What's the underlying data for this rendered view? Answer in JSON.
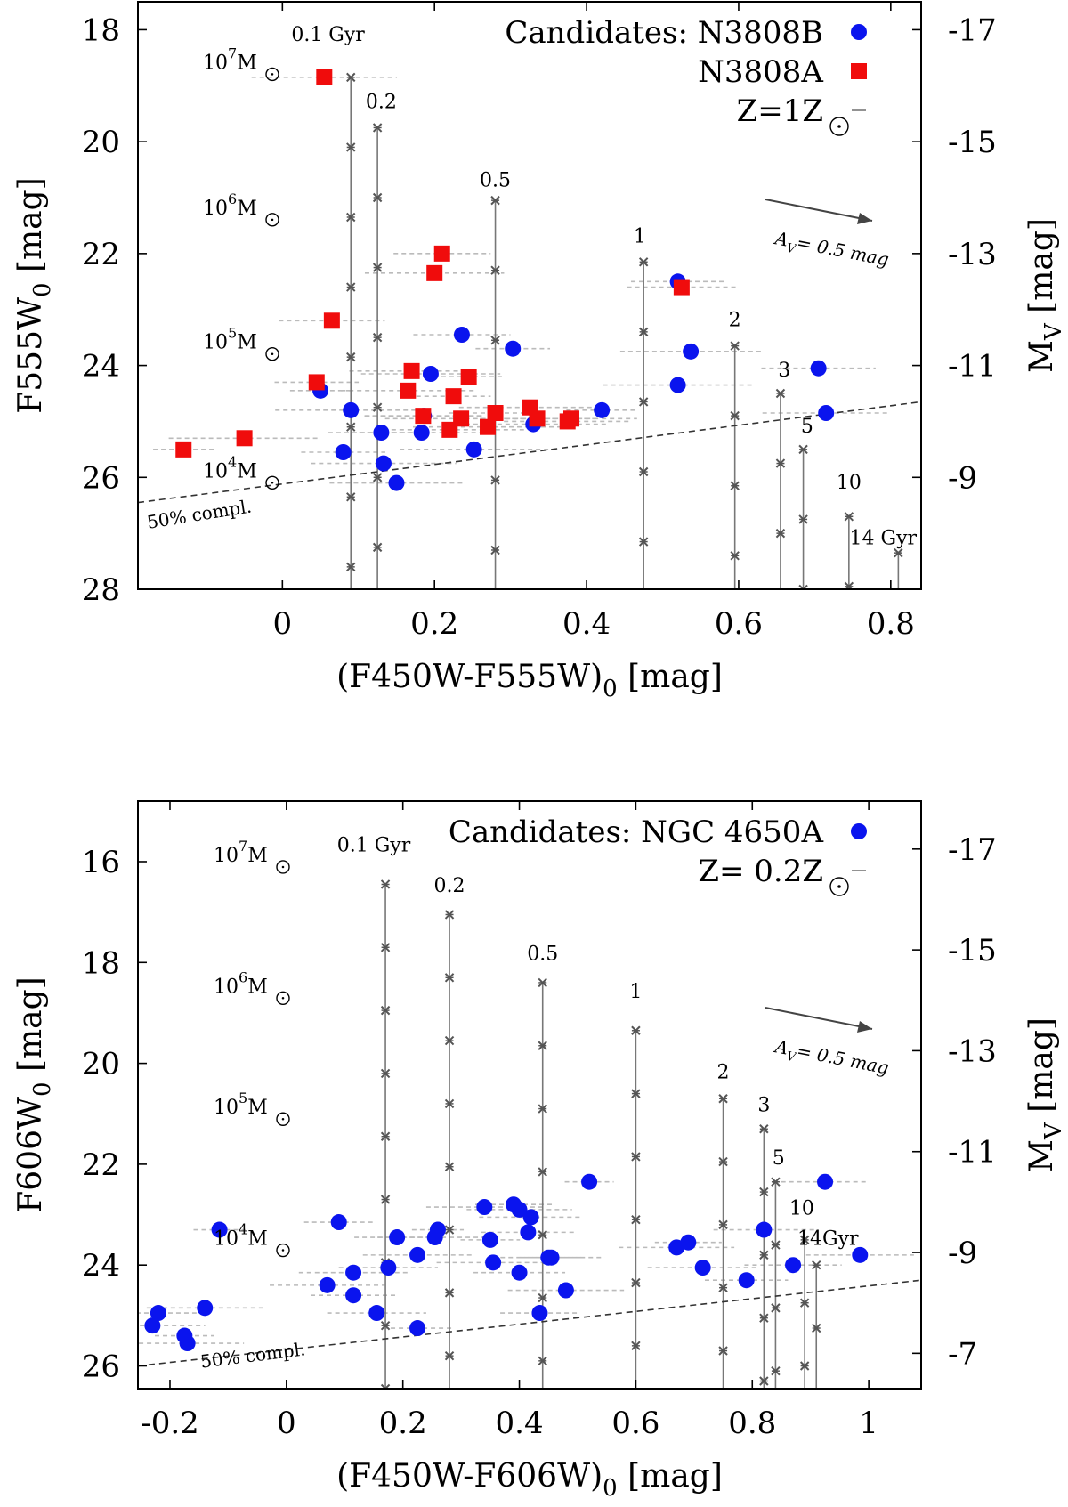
{
  "colors": {
    "blue": "#0a14ee",
    "red": "#f00c0c",
    "track": "#777777",
    "cross": "#555555",
    "err": "#bbbbbb",
    "axis": "#000000"
  },
  "chart_data": [
    {
      "type": "scatter",
      "title": "",
      "xlabel": "(F450W-F555W)",
      "xlabel_sub": "0",
      "xlabel_unit": " [mag]",
      "ylabel": "F555W",
      "ylabel_sub": "0",
      "ylabel_unit": " [mag]",
      "y2label": "M",
      "y2label_sub": "V",
      "y2label_unit": " [mag]",
      "xlim": [
        -0.19,
        0.84
      ],
      "ylim": [
        28,
        17.5
      ],
      "xticks": [
        {
          "v": 0,
          "l": "0"
        },
        {
          "v": 0.2,
          "l": "0.2"
        },
        {
          "v": 0.4,
          "l": "0.4"
        },
        {
          "v": 0.6,
          "l": "0.6"
        },
        {
          "v": 0.8,
          "l": "0.8"
        }
      ],
      "yticks": [
        {
          "v": 18,
          "l": "18"
        },
        {
          "v": 20,
          "l": "20"
        },
        {
          "v": 22,
          "l": "22"
        },
        {
          "v": 24,
          "l": "24"
        },
        {
          "v": 26,
          "l": "26"
        },
        {
          "v": 28,
          "l": "28"
        }
      ],
      "y2ticks": [
        {
          "v": 18,
          "l": "-17"
        },
        {
          "v": 20,
          "l": "-15"
        },
        {
          "v": 22,
          "l": "-13"
        },
        {
          "v": 24,
          "l": "-11"
        },
        {
          "v": 26,
          "l": "-9"
        }
      ],
      "legend": [
        {
          "label": "Candidates: N3808B",
          "marker": "circle",
          "color": "blue"
        },
        {
          "label": "N3808A",
          "marker": "square",
          "color": "red"
        },
        {
          "label": "Z=1Z",
          "sun": true,
          "marker": "line",
          "color": "track"
        }
      ],
      "mass_labels": [
        {
          "exp": "7",
          "y": 18.7
        },
        {
          "exp": "6",
          "y": 21.3
        },
        {
          "exp": "5",
          "y": 23.7
        },
        {
          "exp": "4",
          "y": 26.0
        }
      ],
      "tracks": [
        {
          "label": "0.1 Gyr",
          "x": 0.09,
          "ytop": 18.85,
          "lx": 0.06,
          "ly": 18.2
        },
        {
          "label": "0.2",
          "x": 0.125,
          "ytop": 19.75,
          "lx": 0.13,
          "ly": 19.4
        },
        {
          "label": "0.5",
          "x": 0.28,
          "ytop": 21.05,
          "lx": 0.28,
          "ly": 20.8
        },
        {
          "label": "1",
          "x": 0.475,
          "ytop": 22.15,
          "lx": 0.47,
          "ly": 21.8
        },
        {
          "label": "2",
          "x": 0.595,
          "ytop": 23.65,
          "lx": 0.595,
          "ly": 23.3
        },
        {
          "label": "3",
          "x": 0.655,
          "ytop": 24.5,
          "lx": 0.66,
          "ly": 24.2
        },
        {
          "label": "5",
          "x": 0.685,
          "ytop": 25.5,
          "lx": 0.69,
          "ly": 25.2
        },
        {
          "label": "10",
          "x": 0.745,
          "ytop": 26.7,
          "lx": 0.745,
          "ly": 26.2
        },
        {
          "label": "14 Gyr",
          "x": 0.81,
          "ytop": 27.35,
          "lx": 0.79,
          "ly": 27.2
        }
      ],
      "reddening_label": "A",
      "reddening_sub": "V",
      "reddening_text": "= 0.5 mag",
      "completeness_label": "50% compl.",
      "completeness_line": {
        "x1": -0.19,
        "y1": 26.45,
        "x2": 0.84,
        "y2": 24.65
      },
      "series": [
        {
          "name": "Candidates: N3808B",
          "color": "blue",
          "marker": "circle",
          "x": [
            0.05,
            0.09,
            0.08,
            0.133,
            0.13,
            0.15,
            0.183,
            0.186,
            0.195,
            0.236,
            0.252,
            0.303,
            0.33,
            0.42,
            0.52,
            0.52,
            0.537,
            0.705,
            0.715
          ],
          "y": [
            24.45,
            24.8,
            25.55,
            25.75,
            25.2,
            26.1,
            25.2,
            24.9,
            24.15,
            23.45,
            25.5,
            23.7,
            25.05,
            24.8,
            24.35,
            22.5,
            23.75,
            24.05,
            24.85
          ]
        },
        {
          "name": "N3808A",
          "color": "red",
          "marker": "square",
          "x": [
            -0.13,
            -0.05,
            0.045,
            0.055,
            0.065,
            0.165,
            0.17,
            0.185,
            0.2,
            0.21,
            0.22,
            0.225,
            0.235,
            0.245,
            0.27,
            0.28,
            0.325,
            0.335,
            0.375,
            0.38,
            0.525
          ],
          "y": [
            25.5,
            25.3,
            24.3,
            18.85,
            23.2,
            24.45,
            24.1,
            24.9,
            22.35,
            22.0,
            25.15,
            24.55,
            24.95,
            24.2,
            25.1,
            24.85,
            24.75,
            24.95,
            25.0,
            24.95,
            22.6
          ]
        }
      ]
    },
    {
      "type": "scatter",
      "title": "",
      "xlabel": "(F450W-F606W)",
      "xlabel_sub": "0",
      "xlabel_unit": " [mag]",
      "ylabel": "F606W",
      "ylabel_sub": "0",
      "ylabel_unit": " [mag]",
      "y2label": "M",
      "y2label_sub": "V",
      "y2label_unit": " [mag]",
      "xlim": [
        -0.255,
        1.09
      ],
      "ylim": [
        26.45,
        14.8
      ],
      "xticks": [
        {
          "v": -0.2,
          "l": "-0.2"
        },
        {
          "v": 0,
          "l": "0"
        },
        {
          "v": 0.2,
          "l": "0.2"
        },
        {
          "v": 0.4,
          "l": "0.4"
        },
        {
          "v": 0.6,
          "l": "0.6"
        },
        {
          "v": 0.8,
          "l": "0.8"
        },
        {
          "v": 1,
          "l": "1"
        }
      ],
      "yticks": [
        {
          "v": 16,
          "l": "16"
        },
        {
          "v": 18,
          "l": "18"
        },
        {
          "v": 20,
          "l": "20"
        },
        {
          "v": 22,
          "l": "22"
        },
        {
          "v": 24,
          "l": "24"
        },
        {
          "v": 26,
          "l": "26"
        }
      ],
      "y2ticks": [
        {
          "v": 15.75,
          "l": "-17"
        },
        {
          "v": 17.75,
          "l": "-15"
        },
        {
          "v": 19.75,
          "l": "-13"
        },
        {
          "v": 21.75,
          "l": "-11"
        },
        {
          "v": 23.75,
          "l": "-9"
        },
        {
          "v": 25.75,
          "l": "-7"
        }
      ],
      "legend": [
        {
          "label": "Candidates: NGC 4650A",
          "marker": "circle",
          "color": "blue"
        },
        {
          "label": "Z= 0.2Z",
          "sun": true,
          "marker": "line",
          "color": "track"
        }
      ],
      "mass_labels": [
        {
          "exp": "7",
          "y": 16.0
        },
        {
          "exp": "6",
          "y": 18.6
        },
        {
          "exp": "5",
          "y": 21.0
        },
        {
          "exp": "4",
          "y": 23.6
        }
      ],
      "tracks": [
        {
          "label": "0.1 Gyr",
          "x": 0.17,
          "ytop": 16.45,
          "lx": 0.15,
          "ly": 15.8
        },
        {
          "label": "0.2",
          "x": 0.28,
          "ytop": 17.05,
          "lx": 0.28,
          "ly": 16.6
        },
        {
          "label": "0.5",
          "x": 0.44,
          "ytop": 18.4,
          "lx": 0.44,
          "ly": 17.95
        },
        {
          "label": "1",
          "x": 0.6,
          "ytop": 19.35,
          "lx": 0.6,
          "ly": 18.7
        },
        {
          "label": "2",
          "x": 0.75,
          "ytop": 20.7,
          "lx": 0.75,
          "ly": 20.3
        },
        {
          "label": "3",
          "x": 0.82,
          "ytop": 21.3,
          "lx": 0.82,
          "ly": 20.95
        },
        {
          "label": "5",
          "x": 0.84,
          "ytop": 22.35,
          "lx": 0.845,
          "ly": 22.0
        },
        {
          "label": "10",
          "x": 0.89,
          "ytop": 23.5,
          "lx": 0.885,
          "ly": 23.0
        },
        {
          "label": "14Gyr",
          "x": 0.91,
          "ytop": 24.0,
          "lx": 0.93,
          "ly": 23.6
        }
      ],
      "reddening_label": "A",
      "reddening_sub": "V",
      "reddening_text": "= 0.5 mag",
      "completeness_label": "50% compl.",
      "completeness_line": {
        "x1": -0.255,
        "y1": 26.0,
        "x2": 1.09,
        "y2": 24.3
      },
      "series": [
        {
          "name": "Candidates: NGC 4650A",
          "color": "blue",
          "marker": "circle",
          "x": [
            -0.23,
            -0.22,
            -0.17,
            -0.175,
            -0.14,
            -0.115,
            0.07,
            0.09,
            0.115,
            0.115,
            0.155,
            0.175,
            0.19,
            0.225,
            0.225,
            0.255,
            0.26,
            0.34,
            0.35,
            0.355,
            0.39,
            0.4,
            0.4,
            0.415,
            0.42,
            0.435,
            0.45,
            0.455,
            0.48,
            0.52,
            0.67,
            0.69,
            0.715,
            0.79,
            0.82,
            0.87,
            0.925,
            0.985
          ],
          "y": [
            25.2,
            24.95,
            25.55,
            25.4,
            24.85,
            23.3,
            24.4,
            23.15,
            24.15,
            24.6,
            24.95,
            24.05,
            23.45,
            23.8,
            25.25,
            23.45,
            23.3,
            22.85,
            23.5,
            23.95,
            22.8,
            22.9,
            24.15,
            23.35,
            23.05,
            24.95,
            23.85,
            23.85,
            24.5,
            22.35,
            23.65,
            23.55,
            24.05,
            24.3,
            23.3,
            24.0,
            22.35,
            23.8
          ]
        }
      ]
    }
  ]
}
